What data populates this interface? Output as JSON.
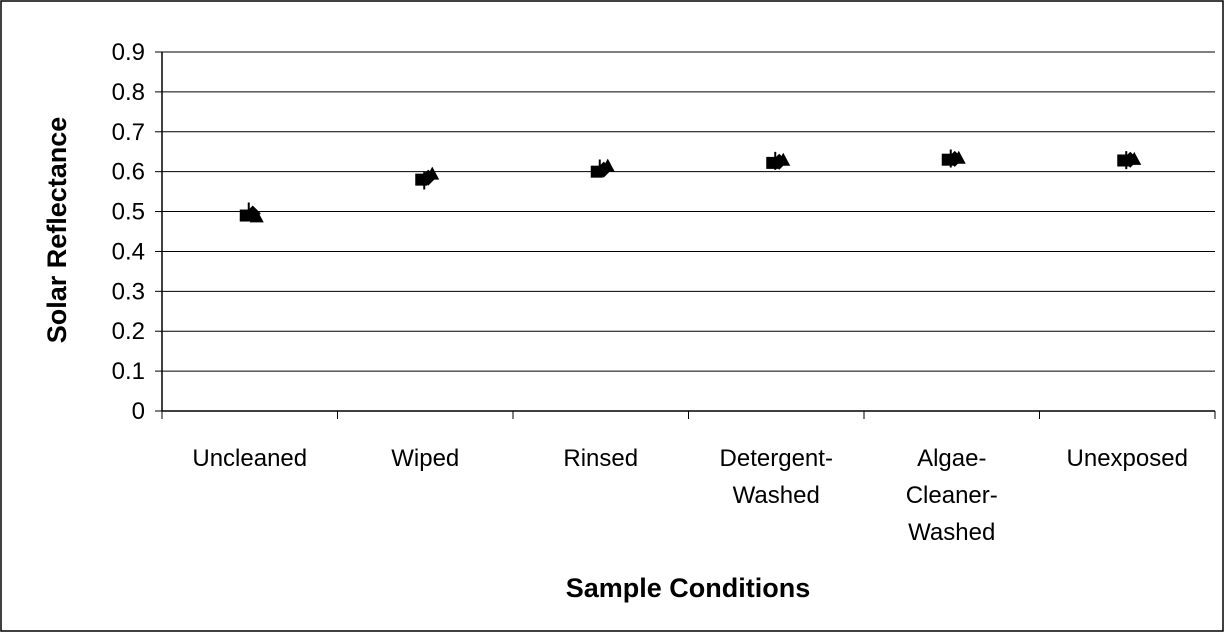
{
  "chart_data": {
    "type": "scatter",
    "title": "",
    "xlabel": "Sample Conditions",
    "ylabel": "Solar Reflectance",
    "ylim": [
      0,
      0.9
    ],
    "yticks": [
      "0",
      "0.1",
      "0.2",
      "0.3",
      "0.4",
      "0.5",
      "0.6",
      "0.7",
      "0.8",
      "0.9"
    ],
    "grid": true,
    "legend": "none",
    "categories": [
      [
        "Uncleaned"
      ],
      [
        "Wiped"
      ],
      [
        "Rinsed"
      ],
      [
        "Detergent-",
        "Washed"
      ],
      [
        "Algae-",
        "Cleaner-",
        "Washed"
      ],
      [
        "Unexposed"
      ]
    ],
    "series": [
      {
        "values": [
          0.49,
          0.58,
          0.6,
          0.622,
          0.63,
          0.628
        ]
      },
      {
        "values": [
          0.495,
          0.585,
          0.605,
          0.625,
          0.632,
          0.63
        ]
      },
      {
        "values": [
          0.488,
          0.595,
          0.615,
          0.63,
          0.635,
          0.632
        ]
      },
      {
        "values": [
          0.5,
          0.578,
          0.608,
          0.627,
          0.633,
          0.629
        ]
      }
    ],
    "marker_color": "#000000"
  }
}
